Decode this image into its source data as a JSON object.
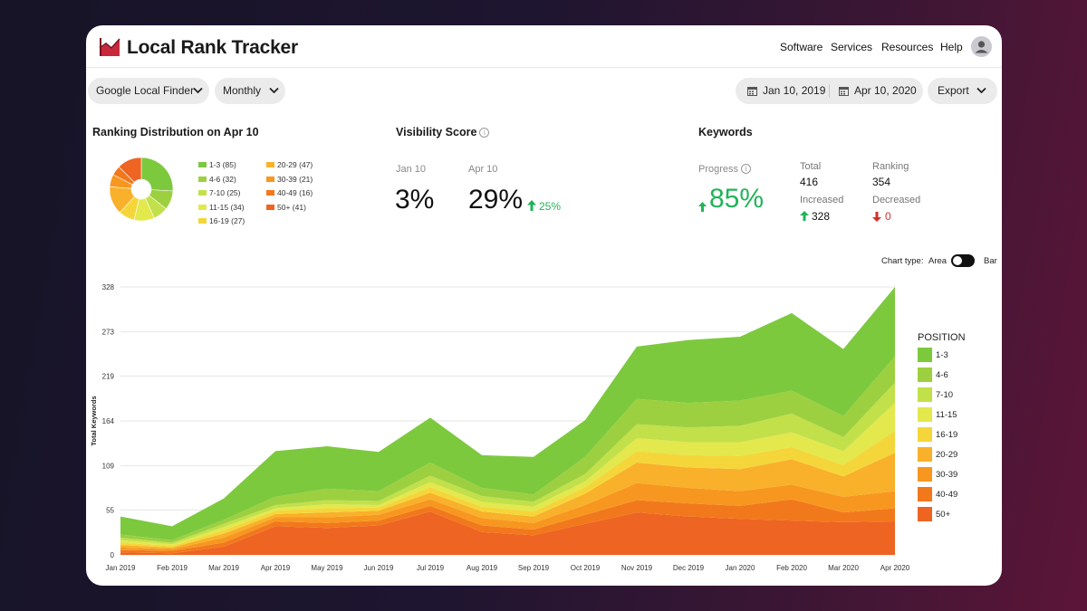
{
  "header": {
    "brand": "Local Rank Tracker",
    "nav": [
      "Software",
      "Services",
      "Resources",
      "Help"
    ]
  },
  "filters": {
    "source": "Google Local Finder",
    "period": "Monthly",
    "date_from": "Jan 10, 2019",
    "date_to": "Apr 10, 2020",
    "export": "Export"
  },
  "distribution": {
    "title": "Ranking Distribution on Apr 10",
    "items": [
      {
        "label": "1-3",
        "count": "(85)",
        "value": 85,
        "color": "#7dc93e"
      },
      {
        "label": "4-6",
        "count": "(32)",
        "value": 32,
        "color": "#9dd040"
      },
      {
        "label": "7-10",
        "count": "(25)",
        "value": 25,
        "color": "#c2e04a"
      },
      {
        "label": "11-15",
        "count": "(34)",
        "value": 34,
        "color": "#e3e84d"
      },
      {
        "label": "16-19",
        "count": "(27)",
        "value": 27,
        "color": "#f5d63a"
      },
      {
        "label": "20-29",
        "count": "(47)",
        "value": 47,
        "color": "#f9b02a"
      },
      {
        "label": "30-39",
        "count": "(21)",
        "value": 21,
        "color": "#f79720"
      },
      {
        "label": "40-49",
        "count": "(16)",
        "value": 16,
        "color": "#f2781c"
      },
      {
        "label": "50+",
        "count": "(41)",
        "value": 41,
        "color": "#ee6422"
      }
    ]
  },
  "visibility": {
    "title": "Visibility Score",
    "from_label": "Jan 10",
    "from_value": "3%",
    "to_label": "Apr 10",
    "to_value": "29%",
    "change": "25%"
  },
  "keywords": {
    "title": "Keywords",
    "progress_label": "Progress",
    "progress_value": "85%",
    "total_label": "Total",
    "total_value": "416",
    "ranking_label": "Ranking",
    "ranking_value": "354",
    "increased_label": "Increased",
    "increased_value": "328",
    "decreased_label": "Decreased",
    "decreased_value": "0"
  },
  "chart_controls": {
    "label": "Chart type:",
    "option_a": "Area",
    "option_b": "Bar"
  },
  "chart_data": {
    "type": "area",
    "stacked": true,
    "ylabel": "Total Keywords",
    "yticks": [
      0,
      55,
      109,
      164,
      219,
      273,
      328
    ],
    "ylim": [
      0,
      328
    ],
    "categories": [
      "Jan 2019",
      "Feb 2019",
      "Mar 2019",
      "Apr 2019",
      "May 2019",
      "Jun 2019",
      "Jul 2019",
      "Aug 2019",
      "Sep 2019",
      "Oct 2019",
      "Nov 2019",
      "Dec 2019",
      "Jan 2020",
      "Feb 2020",
      "Mar 2020",
      "Apr 2020"
    ],
    "legend_title": "POSITION",
    "series": [
      {
        "name": "50+",
        "color": "#ee6422",
        "values": [
          3,
          2,
          10,
          35,
          33,
          36,
          53,
          28,
          24,
          38,
          52,
          47,
          44,
          42,
          40,
          41
        ]
      },
      {
        "name": "40-49",
        "color": "#f2781c",
        "values": [
          3,
          3,
          5,
          6,
          6,
          6,
          7,
          8,
          7,
          11,
          15,
          16,
          16,
          26,
          12,
          16
        ]
      },
      {
        "name": "30-39",
        "color": "#f79720",
        "values": [
          3,
          2,
          6,
          5,
          7,
          7,
          8,
          9,
          8,
          12,
          21,
          19,
          18,
          18,
          19,
          21
        ]
      },
      {
        "name": "20-29",
        "color": "#f9b02a",
        "values": [
          3,
          2,
          5,
          4,
          6,
          5,
          8,
          8,
          8,
          14,
          25,
          25,
          27,
          31,
          25,
          47
        ]
      },
      {
        "name": "16-19",
        "color": "#f5d63a",
        "values": [
          3,
          2,
          4,
          4,
          5,
          4,
          7,
          6,
          6,
          8,
          14,
          15,
          16,
          15,
          14,
          27
        ]
      },
      {
        "name": "11-15",
        "color": "#e3e84d",
        "values": [
          3,
          2,
          4,
          3,
          5,
          3,
          6,
          6,
          6,
          7,
          16,
          16,
          17,
          18,
          17,
          34
        ]
      },
      {
        "name": "7-10",
        "color": "#c2e04a",
        "values": [
          3,
          2,
          4,
          4,
          5,
          5,
          8,
          7,
          6,
          9,
          17,
          18,
          20,
          23,
          17,
          25
        ]
      },
      {
        "name": "4-6",
        "color": "#9dd040",
        "values": [
          4,
          3,
          5,
          10,
          14,
          12,
          16,
          10,
          9,
          21,
          31,
          30,
          31,
          28,
          26,
          32
        ]
      },
      {
        "name": "1-3",
        "color": "#7dc93e",
        "values": [
          22,
          17,
          26,
          56,
          52,
          48,
          55,
          40,
          46,
          45,
          64,
          77,
          78,
          95,
          82,
          85
        ]
      }
    ]
  }
}
